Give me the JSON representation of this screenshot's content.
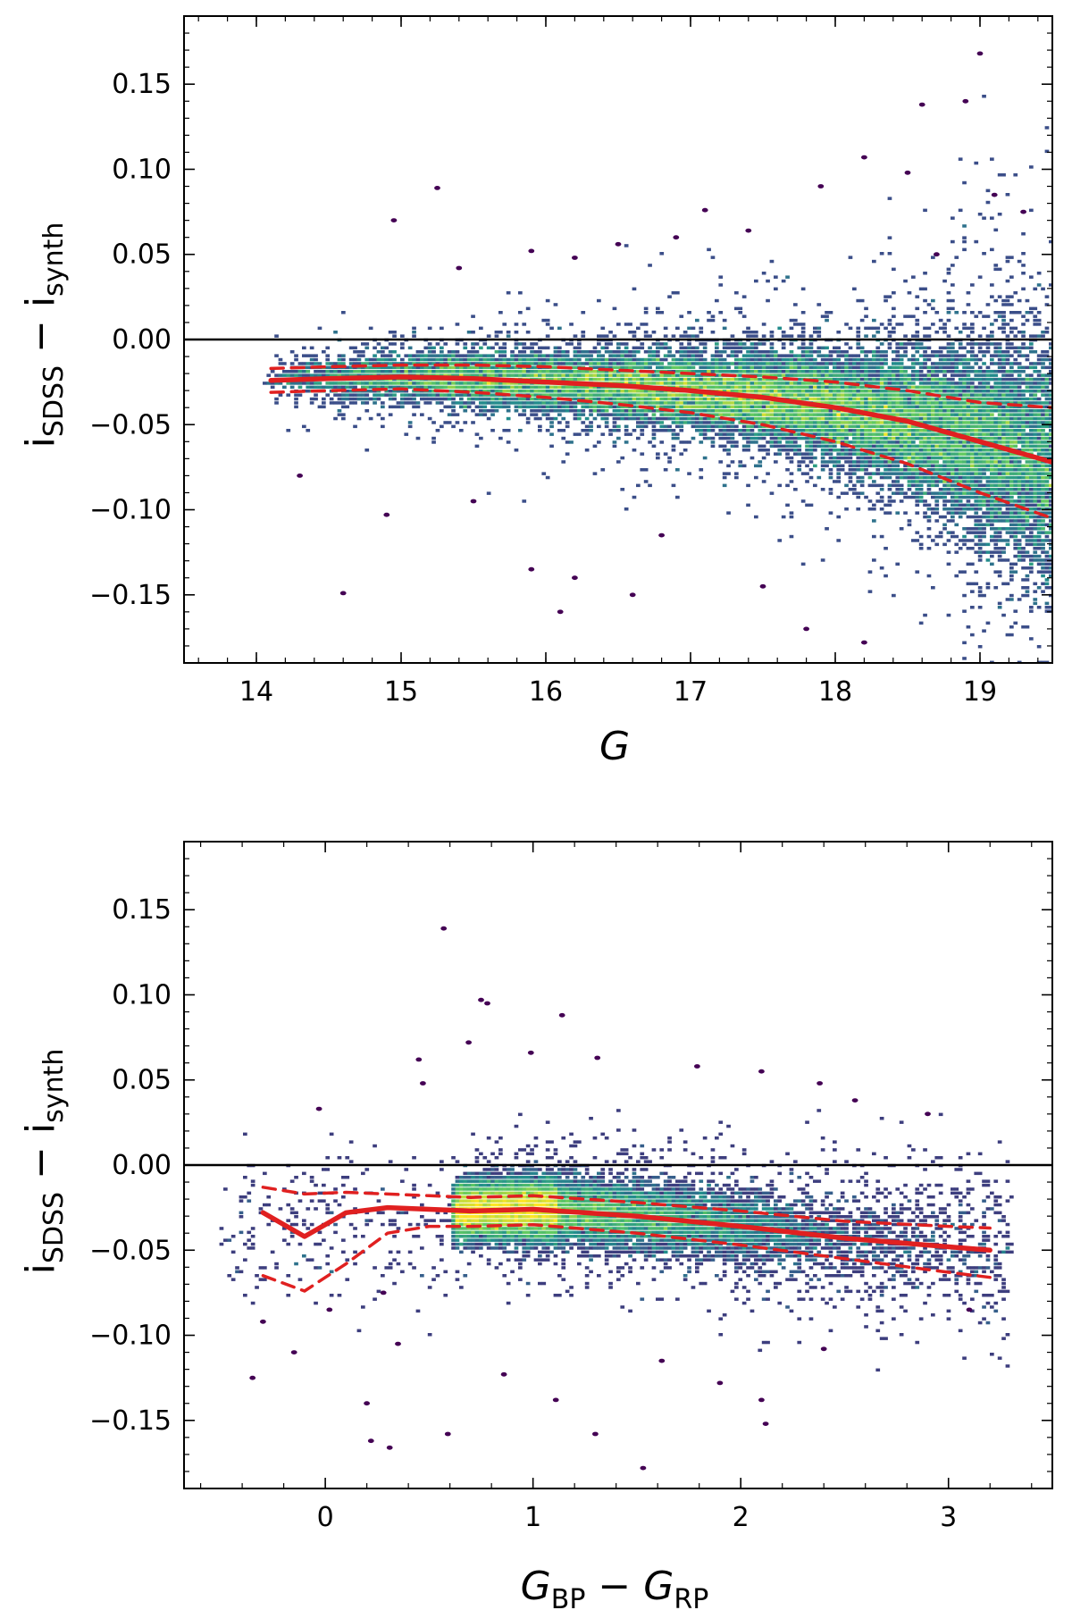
{
  "chart_data": [
    {
      "type": "scatter",
      "subtype": "density-hexbin",
      "xlabel": {
        "main": "G",
        "sub": ""
      },
      "ylabel": {
        "main": "i",
        "sub": "SDSS",
        "minus": "−",
        "main2": "i",
        "sub2": "synth"
      },
      "xlim": [
        13.5,
        19.5
      ],
      "ylim": [
        -0.19,
        0.19
      ],
      "xticks": [
        14,
        15,
        16,
        17,
        18,
        19
      ],
      "xtick_labels": [
        "14",
        "15",
        "16",
        "17",
        "18",
        "19"
      ],
      "yticks": [
        -0.15,
        -0.1,
        -0.05,
        0.0,
        0.05,
        0.1,
        0.15
      ],
      "ytick_labels": [
        "−0.15",
        "−0.10",
        "−0.05",
        "0.00",
        "0.05",
        "0.10",
        "0.15"
      ],
      "reference_line_y": 0.0,
      "colormap": "viridis",
      "density_model": {
        "x_range": [
          14.05,
          19.5
        ],
        "center_x": [
          14.1,
          15.0,
          16.0,
          17.0,
          17.5,
          18.0,
          18.5,
          19.0,
          19.5
        ],
        "center_y": [
          -0.024,
          -0.022,
          -0.025,
          -0.03,
          -0.034,
          -0.04,
          -0.048,
          -0.06,
          -0.072
        ],
        "spread_x": [
          14.1,
          15.0,
          16.0,
          17.0,
          18.0,
          18.5,
          19.0,
          19.5
        ],
        "spread_y": [
          0.006,
          0.007,
          0.009,
          0.011,
          0.015,
          0.02,
          0.028,
          0.036
        ],
        "n_core": 19000,
        "n_halo": 2200
      },
      "series": [
        {
          "name": "median",
          "style": "solid",
          "color": "#e02020",
          "x": [
            14.1,
            14.5,
            15.0,
            15.5,
            16.0,
            16.5,
            17.0,
            17.5,
            18.0,
            18.5,
            19.0,
            19.5
          ],
          "y": [
            -0.024,
            -0.023,
            -0.022,
            -0.023,
            -0.025,
            -0.027,
            -0.03,
            -0.034,
            -0.04,
            -0.048,
            -0.06,
            -0.072
          ]
        },
        {
          "name": "upper percentile",
          "style": "dashed",
          "color": "#e02020",
          "x": [
            14.1,
            14.5,
            15.0,
            15.5,
            16.0,
            16.5,
            17.0,
            17.5,
            18.0,
            18.5,
            19.0,
            19.5
          ],
          "y": [
            -0.017,
            -0.016,
            -0.015,
            -0.015,
            -0.016,
            -0.018,
            -0.02,
            -0.022,
            -0.025,
            -0.03,
            -0.037,
            -0.04
          ]
        },
        {
          "name": "lower percentile",
          "style": "dashed",
          "color": "#e02020",
          "x": [
            14.1,
            14.5,
            15.0,
            15.5,
            16.0,
            16.5,
            17.0,
            17.5,
            18.0,
            18.5,
            19.0,
            19.5
          ],
          "y": [
            -0.031,
            -0.03,
            -0.029,
            -0.031,
            -0.034,
            -0.038,
            -0.043,
            -0.05,
            -0.06,
            -0.073,
            -0.09,
            -0.105
          ]
        }
      ],
      "outliers": [
        [
          19.0,
          0.168
        ],
        [
          18.6,
          0.138
        ],
        [
          18.9,
          0.14
        ],
        [
          18.2,
          0.107
        ],
        [
          18.5,
          0.098
        ],
        [
          17.9,
          0.09
        ],
        [
          15.25,
          0.089
        ],
        [
          14.95,
          0.07
        ],
        [
          19.3,
          0.075
        ],
        [
          19.1,
          0.085
        ],
        [
          18.7,
          0.05
        ],
        [
          16.5,
          0.056
        ],
        [
          15.9,
          0.052
        ],
        [
          16.9,
          0.06
        ],
        [
          17.4,
          0.064
        ],
        [
          15.4,
          0.042
        ],
        [
          17.1,
          0.076
        ],
        [
          16.2,
          0.048
        ],
        [
          14.6,
          -0.149
        ],
        [
          16.6,
          -0.15
        ],
        [
          15.9,
          -0.135
        ],
        [
          14.9,
          -0.103
        ],
        [
          16.2,
          -0.14
        ],
        [
          14.3,
          -0.08
        ],
        [
          17.5,
          -0.145
        ],
        [
          18.2,
          -0.178
        ],
        [
          17.8,
          -0.17
        ],
        [
          16.1,
          -0.16
        ],
        [
          15.5,
          -0.095
        ],
        [
          16.8,
          -0.115
        ]
      ]
    },
    {
      "type": "scatter",
      "subtype": "density-hexbin",
      "xlabel": {
        "main": "G",
        "sub": "BP",
        "minus": "−",
        "main2": "G",
        "sub2": "RP"
      },
      "ylabel": {
        "main": "i",
        "sub": "SDSS",
        "minus": "−",
        "main2": "i",
        "sub2": "synth"
      },
      "xlim": [
        -0.68,
        3.5
      ],
      "ylim": [
        -0.19,
        0.19
      ],
      "xticks": [
        0,
        1,
        2,
        3
      ],
      "xtick_labels": [
        "0",
        "1",
        "2",
        "3"
      ],
      "yticks": [
        -0.15,
        -0.1,
        -0.05,
        0.0,
        0.05,
        0.1,
        0.15
      ],
      "ytick_labels": [
        "−0.15",
        "−0.10",
        "−0.05",
        "0.00",
        "0.05",
        "0.10",
        "0.15"
      ],
      "reference_line_y": 0.0,
      "colormap": "viridis",
      "density_model": {
        "x_range": [
          0.62,
          3.3
        ],
        "center_x": [
          0.62,
          1.0,
          1.5,
          2.0,
          2.5,
          3.0,
          3.3
        ],
        "center_y": [
          -0.027,
          -0.026,
          -0.03,
          -0.036,
          -0.043,
          -0.048,
          -0.05
        ],
        "spread_x": [
          0.62,
          1.0,
          2.0,
          3.0,
          3.3
        ],
        "spread_y": [
          0.008,
          0.009,
          0.01,
          0.011,
          0.012
        ],
        "n_core": 15000,
        "n_halo": 1600,
        "sparse_x_range": [
          -0.5,
          0.62
        ],
        "n_sparse": 260
      },
      "series": [
        {
          "name": "median",
          "style": "solid",
          "color": "#e02020",
          "x": [
            -0.3,
            -0.1,
            0.1,
            0.3,
            0.5,
            0.7,
            1.0,
            1.5,
            2.0,
            2.5,
            3.0,
            3.2
          ],
          "y": [
            -0.028,
            -0.042,
            -0.028,
            -0.025,
            -0.026,
            -0.027,
            -0.026,
            -0.03,
            -0.036,
            -0.043,
            -0.048,
            -0.05
          ]
        },
        {
          "name": "upper percentile",
          "style": "dashed",
          "color": "#e02020",
          "x": [
            -0.3,
            -0.1,
            0.1,
            0.3,
            0.5,
            0.7,
            1.0,
            1.5,
            2.0,
            2.5,
            3.0,
            3.2
          ],
          "y": [
            -0.013,
            -0.017,
            -0.016,
            -0.017,
            -0.018,
            -0.019,
            -0.018,
            -0.022,
            -0.027,
            -0.033,
            -0.036,
            -0.037
          ]
        },
        {
          "name": "lower percentile",
          "style": "dashed",
          "color": "#e02020",
          "x": [
            -0.3,
            -0.1,
            0.1,
            0.3,
            0.5,
            0.7,
            1.0,
            1.5,
            2.0,
            2.5,
            3.0,
            3.2
          ],
          "y": [
            -0.065,
            -0.074,
            -0.058,
            -0.04,
            -0.036,
            -0.036,
            -0.035,
            -0.04,
            -0.047,
            -0.055,
            -0.063,
            -0.066
          ]
        }
      ],
      "outliers": [
        [
          0.57,
          0.139
        ],
        [
          0.75,
          0.097
        ],
        [
          0.78,
          0.095
        ],
        [
          1.14,
          0.088
        ],
        [
          0.69,
          0.072
        ],
        [
          0.45,
          0.062
        ],
        [
          0.99,
          0.066
        ],
        [
          1.31,
          0.063
        ],
        [
          1.79,
          0.058
        ],
        [
          0.47,
          0.048
        ],
        [
          2.1,
          0.055
        ],
        [
          2.38,
          0.048
        ],
        [
          2.55,
          0.038
        ],
        [
          2.9,
          0.03
        ],
        [
          -0.03,
          0.033
        ],
        [
          -0.35,
          -0.125
        ],
        [
          0.22,
          -0.162
        ],
        [
          0.31,
          -0.166
        ],
        [
          0.59,
          -0.158
        ],
        [
          1.53,
          -0.178
        ],
        [
          1.11,
          -0.138
        ],
        [
          1.3,
          -0.158
        ],
        [
          1.9,
          -0.128
        ],
        [
          2.1,
          -0.138
        ],
        [
          2.12,
          -0.152
        ],
        [
          0.86,
          -0.123
        ],
        [
          0.2,
          -0.14
        ],
        [
          -0.3,
          -0.092
        ],
        [
          0.35,
          -0.105
        ],
        [
          -0.15,
          -0.11
        ],
        [
          0.28,
          -0.075
        ],
        [
          0.02,
          -0.085
        ],
        [
          1.62,
          -0.115
        ],
        [
          2.4,
          -0.108
        ],
        [
          3.1,
          -0.085
        ]
      ]
    }
  ]
}
